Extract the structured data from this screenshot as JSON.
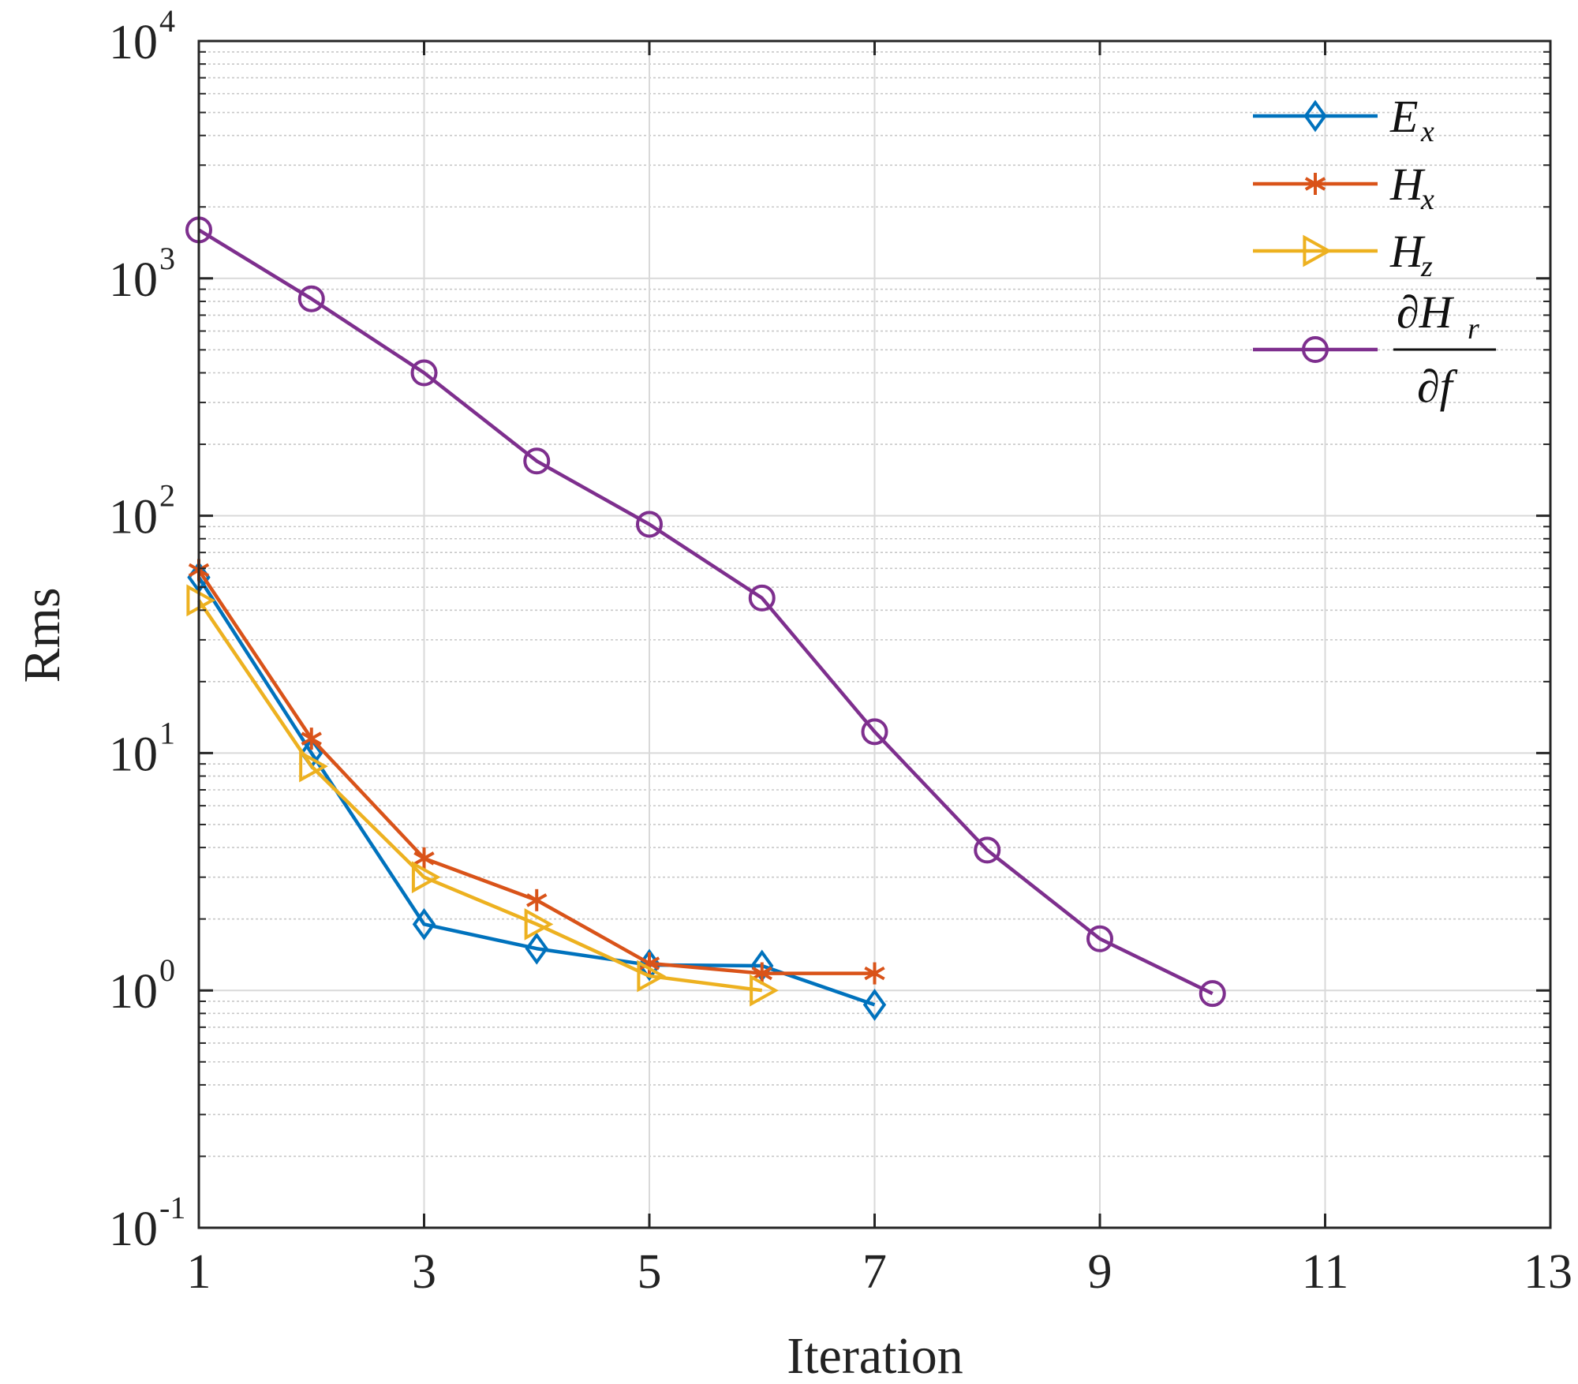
{
  "chart_data": {
    "type": "line",
    "title": "",
    "xlabel": "Iteration",
    "ylabel": "Rms",
    "xlim": [
      1,
      13
    ],
    "ylim": [
      0.1,
      10000
    ],
    "yscale": "log",
    "grid": true,
    "legend_position": "top-right",
    "x_ticks": [
      "1",
      "3",
      "5",
      "7",
      "9",
      "11",
      "13"
    ],
    "y_ticks": [
      {
        "base": "10",
        "exp": "-1"
      },
      {
        "base": "10",
        "exp": "0"
      },
      {
        "base": "10",
        "exp": "1"
      },
      {
        "base": "10",
        "exp": "2"
      },
      {
        "base": "10",
        "exp": "3"
      },
      {
        "base": "10",
        "exp": "4"
      }
    ],
    "series": [
      {
        "name": "E_x",
        "legend_main": "E",
        "legend_sub": "x",
        "color": "#0072BD",
        "marker": "diamond",
        "x": [
          1,
          2,
          3,
          4,
          5,
          6,
          7
        ],
        "values": [
          55,
          10,
          1.9,
          1.5,
          1.28,
          1.27,
          0.87
        ]
      },
      {
        "name": "H_x",
        "legend_main": "H",
        "legend_sub": "x",
        "color": "#D95319",
        "marker": "asterisk",
        "x": [
          1,
          2,
          3,
          4,
          5,
          6,
          7
        ],
        "values": [
          59,
          11.5,
          3.6,
          2.4,
          1.3,
          1.18,
          1.18
        ]
      },
      {
        "name": "H_z",
        "legend_main": "H",
        "legend_sub": "z",
        "color": "#EDB120",
        "marker": "triangle-right",
        "x": [
          1,
          2,
          3,
          4,
          5,
          6
        ],
        "values": [
          44,
          8.8,
          3.0,
          1.9,
          1.15,
          1.0
        ]
      },
      {
        "name": "∂H_r/∂f",
        "legend_main": "∂H",
        "legend_sub": "r",
        "legend_denominator": "∂f",
        "color": "#7E2F8E",
        "marker": "circle",
        "x": [
          1,
          2,
          3,
          4,
          5,
          6,
          7,
          8,
          9,
          10
        ],
        "values": [
          1600,
          820,
          400,
          170,
          92,
          45,
          12.3,
          3.9,
          1.65,
          0.97
        ]
      }
    ]
  }
}
